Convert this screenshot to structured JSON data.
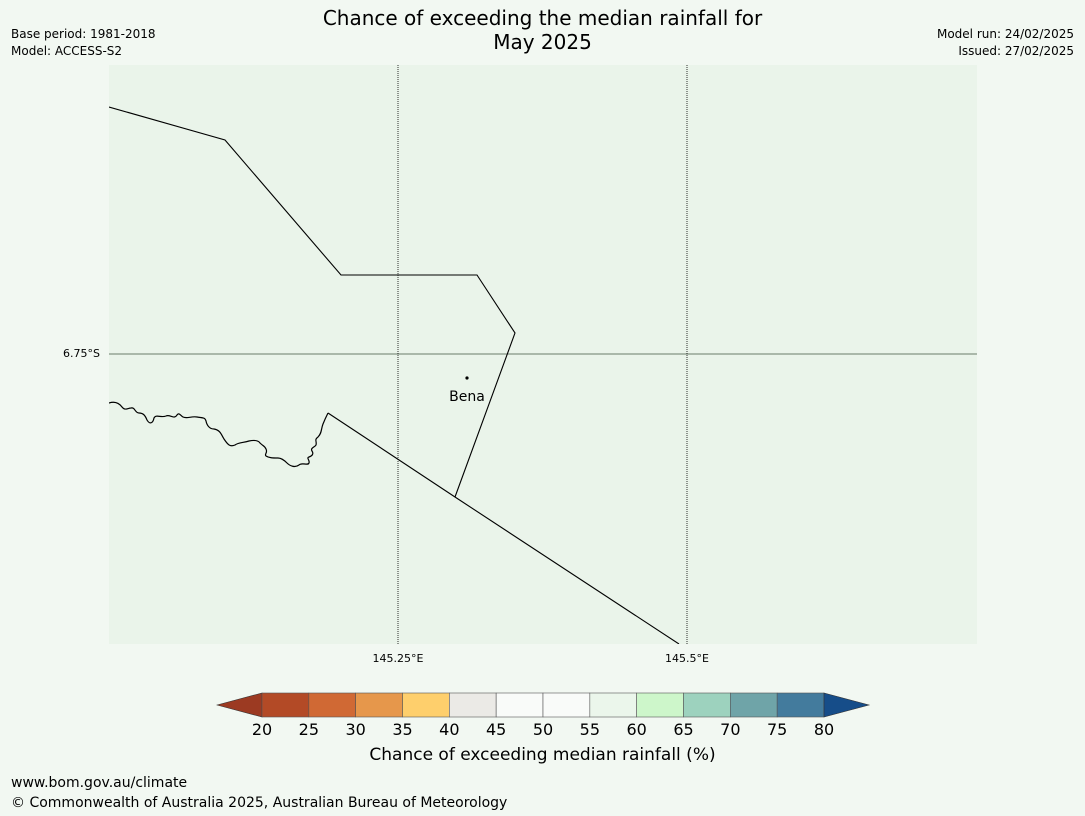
{
  "title_line1": "Chance of exceeding the median rainfall for",
  "title_line2": "May 2025",
  "meta_left": {
    "base_period": "Base period: 1981-2018",
    "model": "Model: ACCESS-S2"
  },
  "meta_right": {
    "model_run": "Model run: 24/02/2025",
    "issued": "Issued: 27/02/2025"
  },
  "map": {
    "lat_label": "6.75°S",
    "lon_labels": [
      "145.25°E",
      "145.5°E"
    ],
    "town": {
      "name": "Bena"
    },
    "background_color": "#eaf4ea",
    "line_color": "#000000"
  },
  "colorbar": {
    "ticks": [
      "20",
      "25",
      "30",
      "35",
      "40",
      "45",
      "50",
      "55",
      "60",
      "65",
      "70",
      "75",
      "80"
    ],
    "low_extend_color": "#9c3a22",
    "high_extend_color": "#164d89",
    "colors": [
      "#b34a26",
      "#d06934",
      "#e6974b",
      "#fecf6c",
      "#ebeae6",
      "#f9fbf9",
      "#f9fbf9",
      "#ebf6eb",
      "#cdf6ca",
      "#9dd2be",
      "#6fa4a8",
      "#437b9d"
    ],
    "label": "Chance of exceeding median rainfall (%)"
  },
  "footer": {
    "url": "www.bom.gov.au/climate",
    "copyright": "© Commonwealth of Australia 2025, Australian Bureau of Meteorology"
  }
}
